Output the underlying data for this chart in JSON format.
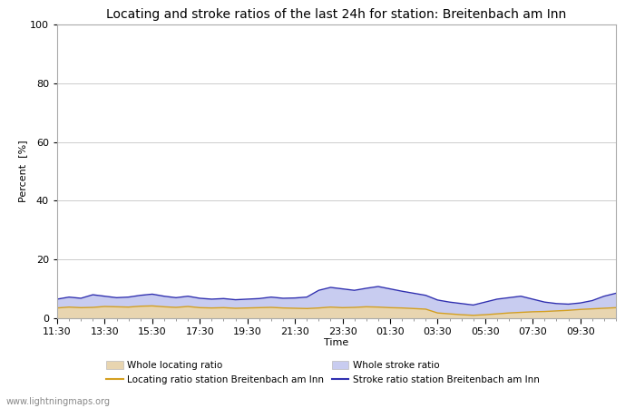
{
  "title": "Locating and stroke ratios of the last 24h for station: Breitenbach am Inn",
  "xlabel": "Time",
  "ylabel": "Percent  [%]",
  "watermark": "www.lightningmaps.org",
  "xlim": [
    0,
    47
  ],
  "ylim": [
    0,
    100
  ],
  "yticks": [
    0,
    20,
    40,
    60,
    80,
    100
  ],
  "xtick_labels": [
    "11:30",
    "13:30",
    "15:30",
    "17:30",
    "19:30",
    "21:30",
    "23:30",
    "01:30",
    "03:30",
    "05:30",
    "07:30",
    "09:30"
  ],
  "xtick_positions": [
    0,
    4,
    8,
    12,
    16,
    20,
    24,
    28,
    32,
    36,
    40,
    44
  ],
  "whole_locating_color": "#e8d5b0",
  "whole_stroke_color": "#c8ccf0",
  "locating_line_color": "#d4a020",
  "stroke_line_color": "#3030b0",
  "background_color": "#ffffff",
  "plot_bg_color": "#ffffff",
  "grid_color": "#cccccc",
  "title_fontsize": 10,
  "axis_fontsize": 8,
  "tick_fontsize": 8,
  "whole_locating_ratio": [
    3.5,
    3.8,
    3.6,
    3.7,
    4.0,
    3.9,
    3.8,
    4.1,
    4.2,
    3.9,
    3.7,
    4.0,
    3.6,
    3.5,
    3.6,
    3.4,
    3.5,
    3.6,
    3.7,
    3.5,
    3.4,
    3.3,
    3.5,
    3.8,
    3.6,
    3.7,
    3.9,
    3.8,
    3.6,
    3.5,
    3.3,
    3.1,
    1.8,
    1.5,
    1.2,
    1.0,
    1.2,
    1.5,
    1.8,
    2.0,
    2.2,
    2.3,
    2.5,
    2.7,
    3.0,
    3.2,
    3.4,
    3.6
  ],
  "whole_stroke_ratio": [
    6.5,
    7.2,
    6.8,
    8.0,
    7.5,
    7.0,
    7.2,
    7.8,
    8.2,
    7.5,
    7.0,
    7.5,
    6.8,
    6.5,
    6.7,
    6.3,
    6.5,
    6.7,
    7.2,
    6.8,
    6.9,
    7.2,
    9.5,
    10.5,
    10.0,
    9.5,
    10.2,
    10.8,
    10.0,
    9.2,
    8.5,
    7.8,
    6.2,
    5.5,
    5.0,
    4.5,
    5.5,
    6.5,
    7.0,
    7.5,
    6.5,
    5.5,
    5.0,
    4.8,
    5.2,
    6.0,
    7.5,
    8.5
  ],
  "locating_line_ratio": [
    3.5,
    3.8,
    3.6,
    3.7,
    4.0,
    3.9,
    3.8,
    4.1,
    4.2,
    3.9,
    3.7,
    4.0,
    3.6,
    3.5,
    3.6,
    3.4,
    3.5,
    3.6,
    3.7,
    3.5,
    3.4,
    3.3,
    3.5,
    3.8,
    3.6,
    3.7,
    3.9,
    3.8,
    3.6,
    3.5,
    3.3,
    3.1,
    1.8,
    1.5,
    1.2,
    1.0,
    1.2,
    1.5,
    1.8,
    2.0,
    2.2,
    2.3,
    2.5,
    2.7,
    3.0,
    3.2,
    3.4,
    3.6
  ],
  "stroke_line_ratio": [
    6.5,
    7.2,
    6.8,
    8.0,
    7.5,
    7.0,
    7.2,
    7.8,
    8.2,
    7.5,
    7.0,
    7.5,
    6.8,
    6.5,
    6.7,
    6.3,
    6.5,
    6.7,
    7.2,
    6.8,
    6.9,
    7.2,
    9.5,
    10.5,
    10.0,
    9.5,
    10.2,
    10.8,
    10.0,
    9.2,
    8.5,
    7.8,
    6.2,
    5.5,
    5.0,
    4.5,
    5.5,
    6.5,
    7.0,
    7.5,
    6.5,
    5.5,
    5.0,
    4.8,
    5.2,
    6.0,
    7.5,
    8.5
  ]
}
